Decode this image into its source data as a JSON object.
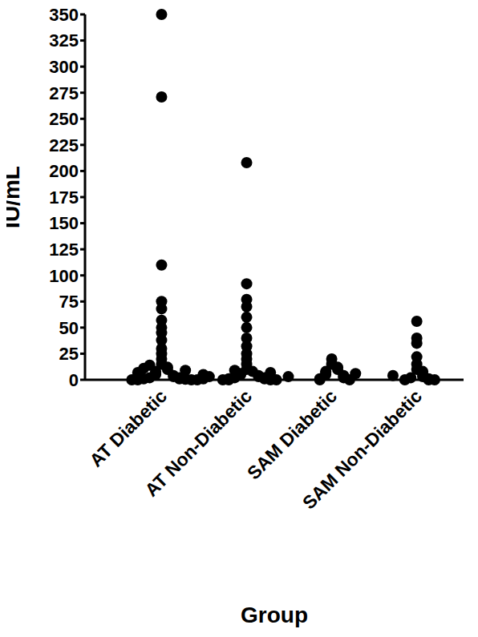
{
  "chart_data": {
    "type": "scatter",
    "x_label": "Group",
    "y_label": "IU/mL",
    "categories": [
      "AT Diabetic",
      "AT Non-Diabetic",
      "SAM Diabetic",
      "SAM Non-Diabetic"
    ],
    "values": [
      [
        350,
        271,
        110,
        75,
        68,
        57,
        50,
        45,
        38,
        30,
        25,
        20,
        15,
        12,
        10,
        8,
        6,
        5,
        4,
        3,
        2,
        2,
        1,
        1,
        0.5,
        0.5,
        0,
        0,
        0,
        0,
        1,
        3,
        5,
        7,
        9,
        11,
        14
      ],
      [
        208,
        92,
        77,
        70,
        60,
        50,
        40,
        32,
        25,
        20,
        15,
        10,
        8,
        6,
        5,
        4,
        3,
        2,
        2,
        1,
        1,
        0,
        0,
        0,
        0,
        9,
        7,
        3
      ],
      [
        20,
        15,
        12,
        10,
        8,
        7,
        5,
        4,
        3,
        2,
        1,
        0,
        0,
        6
      ],
      [
        56,
        40,
        35,
        22,
        15,
        10,
        8,
        5,
        3,
        2,
        1,
        0,
        0,
        0,
        4
      ]
    ],
    "color": "#000000",
    "marker": "circle",
    "ylim": [
      0,
      350
    ],
    "yticks": [
      0,
      25,
      50,
      75,
      100,
      125,
      150,
      175,
      200,
      225,
      250,
      275,
      300,
      325,
      350
    ],
    "grid": false
  }
}
